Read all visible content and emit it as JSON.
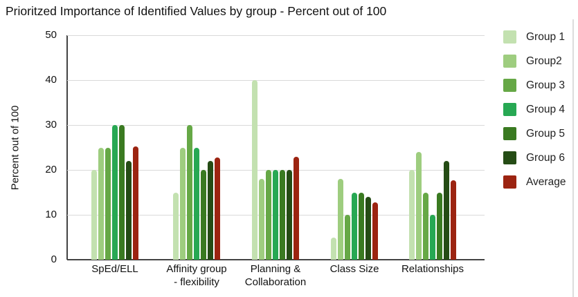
{
  "title": "Prioritzed Importance of Identified Values by group - Percent out of 100",
  "chart_data": {
    "type": "bar",
    "title": "Prioritzed Importance of Identified Values by group - Percent out of 100",
    "xlabel": "",
    "ylabel": "Percent out of 100",
    "ylim": [
      0,
      50
    ],
    "yticks": [
      0,
      10,
      20,
      30,
      40,
      50
    ],
    "grid": true,
    "legend_position": "right",
    "categories": [
      "SpEd/ELL",
      "Affinity group - flexibility",
      "Planning & Collaboration",
      "Class Size",
      "Relationships"
    ],
    "category_display_labels": [
      "SpEd/ELL",
      "Affinity group\n- flexibility",
      "Planning &\nCollaboration",
      "Class Size",
      "Relationships"
    ],
    "series": [
      {
        "name": "Group 1",
        "color": "#c3e1b0",
        "values": [
          20,
          15,
          40,
          5,
          20
        ]
      },
      {
        "name": "Group2",
        "color": "#9ecd7f",
        "values": [
          25,
          25,
          18,
          18,
          24
        ]
      },
      {
        "name": "Group 3",
        "color": "#66a846",
        "values": [
          25,
          30,
          20,
          10,
          15
        ]
      },
      {
        "name": "Group 4",
        "color": "#27a853",
        "values": [
          30,
          25,
          20,
          15,
          10
        ]
      },
      {
        "name": "Group 5",
        "color": "#3a7a21",
        "values": [
          30,
          20,
          20,
          15,
          15
        ]
      },
      {
        "name": "Group 6",
        "color": "#254c15",
        "values": [
          22,
          22,
          20,
          14,
          22
        ]
      },
      {
        "name": "Average",
        "color": "#9c2411",
        "values": [
          25.3,
          22.8,
          23.0,
          12.8,
          17.7
        ]
      }
    ]
  }
}
